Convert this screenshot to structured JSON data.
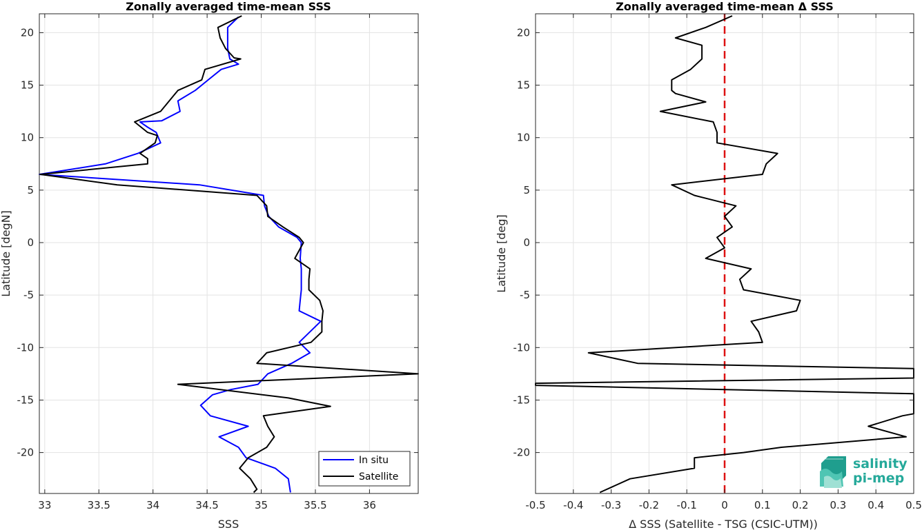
{
  "chart_data": [
    {
      "type": "line",
      "title": "Zonally averaged time-mean SSS",
      "xlabel": "SSS",
      "ylabel": "Latitude [degN]",
      "xlim": [
        32.95,
        36.45
      ],
      "ylim": [
        -23.9,
        21.8
      ],
      "xticks": [
        33,
        33.5,
        34,
        34.5,
        35,
        35.5,
        36
      ],
      "xtick_labels": [
        "33",
        "33.5",
        "34",
        "34.5",
        "35",
        "35.5",
        "36"
      ],
      "yticks": [
        -20,
        -15,
        -10,
        -5,
        0,
        5,
        10,
        15,
        20
      ],
      "ytick_labels": [
        "-20",
        "-15",
        "-10",
        "-5",
        "0",
        "5",
        "10",
        "15",
        "20"
      ],
      "grid": true,
      "legend": "bottom-right",
      "series": [
        {
          "name": "In situ",
          "color": "#0000ff",
          "points": [
            [
              34.79,
              21.5
            ],
            [
              34.69,
              20.5
            ],
            [
              34.69,
              19.5
            ],
            [
              34.69,
              18.5
            ],
            [
              34.71,
              17.5
            ],
            [
              34.79,
              17.0
            ],
            [
              34.63,
              16.5
            ],
            [
              34.51,
              15.5
            ],
            [
              34.39,
              14.5
            ],
            [
              34.23,
              13.5
            ],
            [
              34.25,
              12.5
            ],
            [
              34.08,
              11.6
            ],
            [
              33.88,
              11.5
            ],
            [
              33.95,
              11.0
            ],
            [
              34.03,
              10.5
            ],
            [
              34.07,
              9.5
            ],
            [
              33.86,
              8.5
            ],
            [
              33.56,
              7.5
            ],
            [
              32.95,
              6.5
            ],
            [
              34.43,
              5.5
            ],
            [
              35.02,
              4.5
            ],
            [
              35.03,
              3.5
            ],
            [
              35.07,
              2.5
            ],
            [
              35.16,
              1.5
            ],
            [
              35.33,
              0.5
            ],
            [
              35.37,
              0.0
            ],
            [
              35.36,
              -1.5
            ],
            [
              35.37,
              -2.5
            ],
            [
              35.37,
              -3.5
            ],
            [
              35.37,
              -4.5
            ],
            [
              35.36,
              -5.5
            ],
            [
              35.35,
              -6.5
            ],
            [
              35.55,
              -7.5
            ],
            [
              35.35,
              -9.5
            ],
            [
              35.45,
              -10.5
            ],
            [
              35.28,
              -11.5
            ],
            [
              35.06,
              -12.5
            ],
            [
              34.97,
              -13.5
            ],
            [
              34.72,
              -14.0
            ],
            [
              34.55,
              -14.5
            ],
            [
              34.44,
              -15.5
            ],
            [
              34.53,
              -16.5
            ],
            [
              34.88,
              -17.5
            ],
            [
              34.61,
              -18.5
            ],
            [
              34.79,
              -19.5
            ],
            [
              34.86,
              -20.5
            ],
            [
              35.13,
              -21.5
            ],
            [
              35.25,
              -22.5
            ],
            [
              35.27,
              -23.8
            ]
          ]
        },
        {
          "name": "Satellite",
          "color": "#000000",
          "points": [
            [
              34.82,
              21.6
            ],
            [
              34.6,
              20.5
            ],
            [
              34.62,
              19.5
            ],
            [
              34.67,
              18.5
            ],
            [
              34.75,
              17.6
            ],
            [
              34.81,
              17.5
            ],
            [
              34.48,
              16.5
            ],
            [
              34.45,
              15.5
            ],
            [
              34.23,
              14.5
            ],
            [
              34.07,
              12.5
            ],
            [
              33.83,
              11.5
            ],
            [
              33.95,
              10.5
            ],
            [
              34.04,
              10.2
            ],
            [
              34.02,
              9.5
            ],
            [
              33.88,
              8.5
            ],
            [
              33.95,
              8.0
            ],
            [
              33.95,
              7.5
            ],
            [
              32.96,
              6.5
            ],
            [
              33.67,
              5.5
            ],
            [
              34.96,
              4.5
            ],
            [
              35.05,
              3.5
            ],
            [
              35.06,
              2.5
            ],
            [
              35.2,
              1.5
            ],
            [
              35.35,
              0.5
            ],
            [
              35.39,
              0.0
            ],
            [
              35.31,
              -1.5
            ],
            [
              35.45,
              -2.5
            ],
            [
              35.44,
              -3.5
            ],
            [
              35.44,
              -4.5
            ],
            [
              35.54,
              -5.5
            ],
            [
              35.57,
              -6.5
            ],
            [
              35.56,
              -7.5
            ],
            [
              35.56,
              -8.5
            ],
            [
              35.46,
              -9.5
            ],
            [
              35.05,
              -10.5
            ],
            [
              34.96,
              -11.5
            ],
            [
              36.45,
              -12.5
            ],
            [
              34.23,
              -13.5
            ],
            [
              35.25,
              -14.8
            ],
            [
              35.64,
              -15.6
            ],
            [
              35.02,
              -16.5
            ],
            [
              35.06,
              -17.5
            ],
            [
              35.12,
              -18.5
            ],
            [
              35.05,
              -19.5
            ],
            [
              34.88,
              -20.5
            ],
            [
              34.8,
              -21.5
            ],
            [
              34.9,
              -22.5
            ],
            [
              34.96,
              -23.5
            ],
            [
              34.93,
              -23.8
            ]
          ]
        }
      ]
    },
    {
      "type": "line",
      "title": "Zonally averaged time-mean Δ SSS",
      "xlabel": "Δ SSS (Satellite - TSG (CSIC-UTM))",
      "ylabel": "Latitude [deg]",
      "xlim": [
        -0.5,
        0.5
      ],
      "ylim": [
        -23.9,
        21.8
      ],
      "xticks": [
        -0.5,
        -0.4,
        -0.3,
        -0.2,
        -0.1,
        0,
        0.1,
        0.2,
        0.3,
        0.4,
        0.5
      ],
      "xtick_labels": [
        "-0.5",
        "-0.4",
        "-0.3",
        "-0.2",
        "-0.1",
        "0",
        "0.1",
        "0.2",
        "0.3",
        "0.4",
        "0.5"
      ],
      "yticks": [
        -20,
        -15,
        -10,
        -5,
        0,
        5,
        10,
        15,
        20
      ],
      "ytick_labels": [
        "-20",
        "-15",
        "-10",
        "-5",
        "0",
        "5",
        "10",
        "15",
        "20"
      ],
      "grid": true,
      "reference_line": {
        "x": 0,
        "color": "#dd1111",
        "style": "dashed"
      },
      "series": [
        {
          "color": "#000000",
          "points": [
            [
              0.02,
              21.6
            ],
            [
              -0.05,
              20.5
            ],
            [
              -0.13,
              19.5
            ],
            [
              -0.06,
              18.8
            ],
            [
              -0.06,
              17.5
            ],
            [
              -0.09,
              16.5
            ],
            [
              -0.14,
              15.5
            ],
            [
              -0.14,
              14.5
            ],
            [
              -0.13,
              14.2
            ],
            [
              -0.05,
              13.4
            ],
            [
              -0.17,
              12.5
            ],
            [
              -0.03,
              11.5
            ],
            [
              -0.02,
              10.5
            ],
            [
              -0.02,
              9.5
            ],
            [
              0.14,
              8.5
            ],
            [
              0.11,
              7.5
            ],
            [
              0.1,
              6.5
            ],
            [
              -0.14,
              5.5
            ],
            [
              -0.08,
              4.5
            ],
            [
              0.03,
              3.5
            ],
            [
              0.0,
              2.5
            ],
            [
              0.02,
              1.5
            ],
            [
              -0.02,
              0.5
            ],
            [
              0.0,
              -0.5
            ],
            [
              -0.05,
              -1.5
            ],
            [
              0.07,
              -2.5
            ],
            [
              0.04,
              -3.5
            ],
            [
              0.05,
              -4.5
            ],
            [
              0.2,
              -5.5
            ],
            [
              0.19,
              -6.5
            ],
            [
              0.07,
              -7.5
            ],
            [
              0.09,
              -8.5
            ],
            [
              0.1,
              -9.5
            ],
            [
              -0.36,
              -10.5
            ],
            [
              -0.23,
              -11.5
            ],
            [
              0.55,
              -12.0
            ],
            [
              0.55,
              -12.9
            ],
            [
              -0.52,
              -13.4
            ],
            [
              -0.52,
              -13.6
            ],
            [
              0.55,
              -14.4
            ],
            [
              0.55,
              -16.3
            ],
            [
              0.47,
              -16.5
            ],
            [
              0.38,
              -17.5
            ],
            [
              0.48,
              -18.5
            ],
            [
              0.15,
              -19.5
            ],
            [
              0.05,
              -20.0
            ],
            [
              -0.08,
              -20.5
            ],
            [
              -0.08,
              -21.5
            ],
            [
              -0.25,
              -22.5
            ],
            [
              -0.33,
              -23.8
            ]
          ]
        }
      ]
    }
  ],
  "legend": {
    "items": [
      {
        "label": "In situ",
        "color": "#0000ff"
      },
      {
        "label": "Satellite",
        "color": "#000000"
      }
    ]
  },
  "logo": {
    "line1": "salinity",
    "line2": "pi-mep"
  }
}
